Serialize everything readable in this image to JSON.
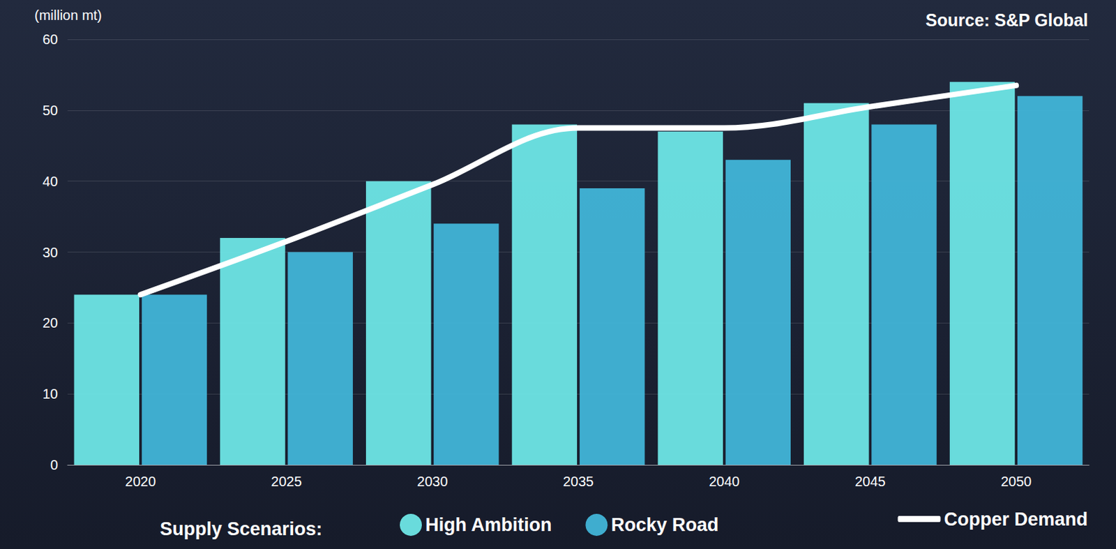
{
  "chart_data": {
    "type": "bar",
    "y_label": "(million mt)",
    "annotation": "Source: S&P Global",
    "legend_title": "Supply Scenarios:",
    "categories": [
      "2020",
      "2025",
      "2030",
      "2035",
      "2040",
      "2045",
      "2050"
    ],
    "series": [
      {
        "name": "High Ambition",
        "type": "bar",
        "color": "#6ee6e6",
        "values": [
          24,
          32,
          40,
          48,
          47,
          51,
          54
        ]
      },
      {
        "name": "Rocky Road",
        "type": "bar",
        "color": "#41b5d8",
        "values": [
          24,
          30,
          34,
          39,
          43,
          48,
          52
        ]
      },
      {
        "name": "Copper Demand",
        "type": "line",
        "color": "#ffffff",
        "line_style": "solid",
        "values": [
          24,
          31.5,
          39.5,
          47.5,
          47.5,
          50.5,
          53.5
        ]
      }
    ],
    "ylim": [
      0,
      60
    ],
    "yticks": [
      0,
      10,
      20,
      30,
      40,
      50,
      60
    ],
    "grid": true,
    "legend": "bottom"
  }
}
